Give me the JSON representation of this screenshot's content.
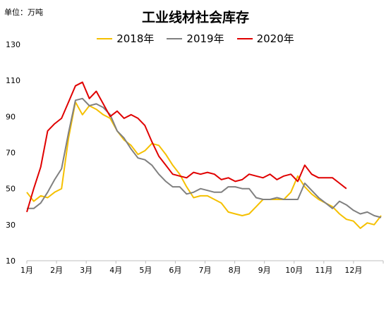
{
  "chart_data": {
    "type": "line",
    "title": "工业线材社会库存",
    "unit_label": "单位：万吨",
    "ylim": [
      10,
      130
    ],
    "yticks": [
      10,
      30,
      50,
      70,
      90,
      110,
      130
    ],
    "xlim": [
      0,
      51.3
    ],
    "month_labels": [
      "1月",
      "2月",
      "3月",
      "4月",
      "5月",
      "6月",
      "7月",
      "8月",
      "9月",
      "10月",
      "11月",
      "12月"
    ],
    "grid": false,
    "legend_position": "top",
    "series": [
      {
        "name": "2018年",
        "color": "#f5c000",
        "x": [
          0,
          1,
          2,
          3,
          4,
          5,
          6,
          7,
          8,
          9,
          10,
          11,
          12,
          13,
          14,
          15,
          16,
          17,
          18,
          19,
          20,
          21,
          22,
          23,
          24,
          25,
          26,
          27,
          28,
          29,
          30,
          31,
          32,
          33,
          34,
          35,
          36,
          37,
          38,
          39,
          40,
          41,
          42,
          43,
          44,
          45,
          46,
          47,
          48,
          49,
          50,
          51
        ],
        "values": [
          48,
          43,
          46,
          45,
          48,
          50,
          78,
          98,
          91,
          96,
          94,
          91,
          89,
          82,
          77,
          74,
          69,
          71,
          75,
          74,
          69,
          63,
          58,
          51,
          45,
          46,
          46,
          44,
          42,
          37,
          36,
          35,
          36,
          40,
          44,
          44,
          44,
          44,
          48,
          57,
          51,
          47,
          44,
          42,
          40,
          36,
          33,
          32,
          28,
          31,
          30,
          35
        ]
      },
      {
        "name": "2019年",
        "color": "#808080",
        "x": [
          0,
          1,
          2,
          3,
          4,
          5,
          6,
          7,
          8,
          9,
          10,
          11,
          12,
          13,
          14,
          15,
          16,
          17,
          18,
          19,
          20,
          21,
          22,
          23,
          24,
          25,
          26,
          27,
          28,
          29,
          30,
          31,
          32,
          33,
          34,
          35,
          36,
          37,
          38,
          39,
          40,
          41,
          42,
          43,
          44,
          45,
          46,
          47,
          48,
          49,
          50,
          51
        ],
        "values": [
          39,
          39,
          42,
          48,
          55,
          61,
          81,
          99,
          100,
          96,
          97,
          95,
          91,
          82,
          78,
          72,
          67,
          66,
          63,
          58,
          54,
          51,
          51,
          47,
          48,
          50,
          49,
          48,
          48,
          51,
          51,
          50,
          50,
          45,
          44,
          44,
          45,
          44,
          44,
          44,
          53,
          49,
          45,
          42,
          39,
          43,
          41,
          38,
          36,
          37,
          35,
          34
        ]
      },
      {
        "name": "2020年",
        "color": "#e00000",
        "x": [
          0,
          1,
          2,
          3,
          4,
          5,
          6,
          7,
          8,
          9,
          10,
          11,
          12,
          13,
          14,
          15,
          16,
          17,
          18,
          19,
          20,
          21,
          22,
          23,
          24,
          25,
          26,
          27,
          28,
          29,
          30,
          31,
          32,
          33,
          34,
          35,
          36,
          37,
          38,
          39,
          40,
          41,
          42,
          43,
          44,
          45,
          46
        ],
        "values": [
          37,
          50,
          62,
          82,
          86,
          89,
          98,
          107,
          109,
          100,
          104,
          97,
          90,
          93,
          89,
          91,
          89,
          85,
          76,
          68,
          63,
          58,
          57,
          56,
          59,
          58,
          59,
          58,
          55,
          56,
          54,
          55,
          58,
          57,
          56,
          58,
          55,
          57,
          58,
          54,
          63,
          58,
          56,
          56,
          56,
          53,
          50
        ]
      }
    ]
  }
}
